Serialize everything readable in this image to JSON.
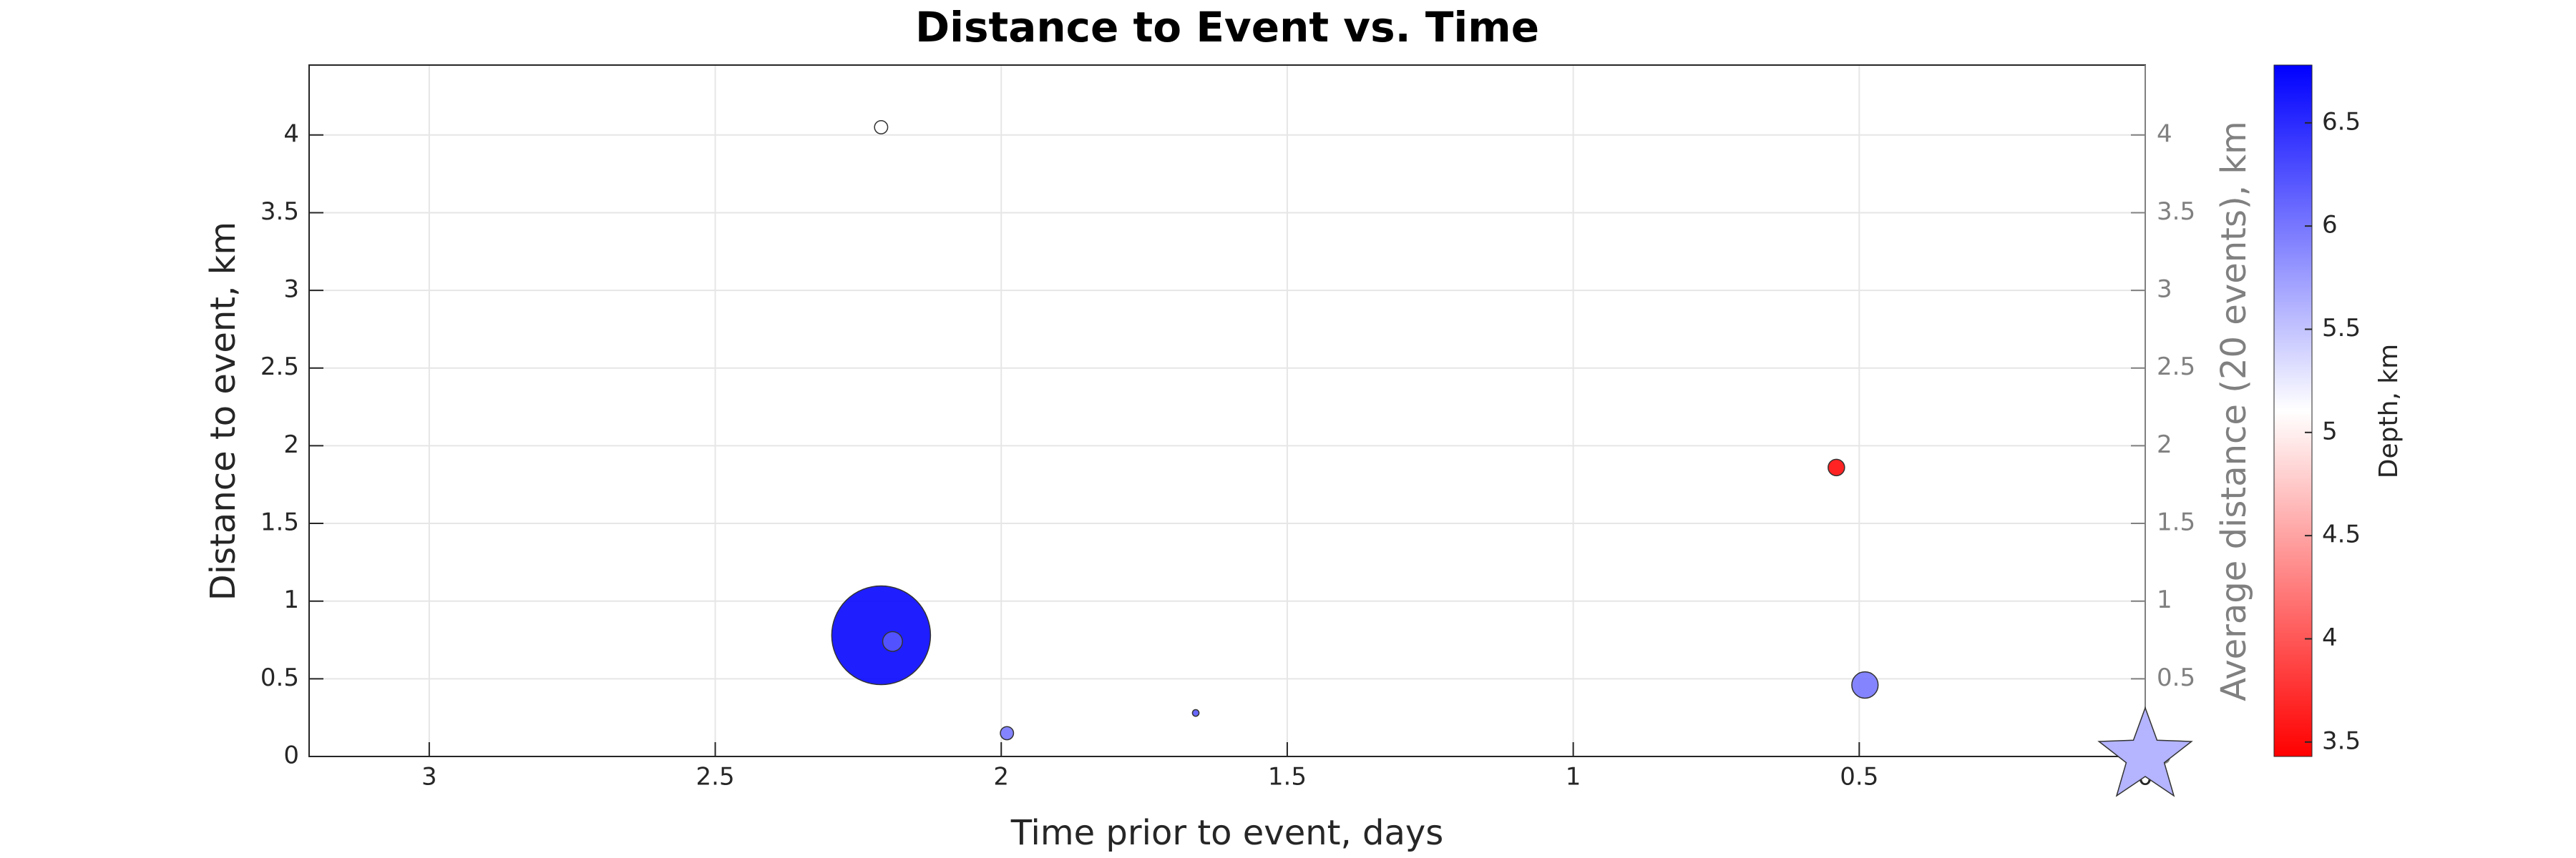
{
  "chart_data": {
    "type": "bubble",
    "title": "Distance to Event vs. Time",
    "xlabel": "Time prior to event, days",
    "ylabel": "Distance to event, km",
    "y2label": "Average distance (20 events), km",
    "colorbar_label": "Depth, km",
    "xlim": [
      3.21,
      0
    ],
    "xticks": [
      3,
      2.5,
      2,
      1.5,
      1,
      0.5,
      0
    ],
    "ylim": [
      0,
      4.45
    ],
    "yticks": [
      0,
      0.5,
      1,
      1.5,
      2,
      2.5,
      3,
      3.5,
      4
    ],
    "y2lim": [
      0,
      4.45
    ],
    "y2ticks": [
      0,
      0.5,
      1,
      1.5,
      2,
      2.5,
      3,
      3.5,
      4
    ],
    "clim": [
      3.43,
      6.78
    ],
    "cticks": [
      3.5,
      4,
      4.5,
      5,
      5.5,
      6,
      6.5
    ],
    "colormap": [
      "#ff0000",
      "#ffffff",
      "#0000ff"
    ],
    "grid": true,
    "series": [
      {
        "x": [
          2.21,
          2.21,
          2.19,
          1.99,
          1.66,
          0.54,
          0.49
        ],
        "y": [
          4.05,
          0.78,
          0.74,
          0.15,
          0.28,
          1.86,
          0.46
        ],
        "sizes": [
          16,
          900,
          36,
          16,
          4,
          25,
          64
        ],
        "depth": [
          5.1,
          6.75,
          6.2,
          6.0,
          6.2,
          3.5,
          6.0
        ]
      }
    ],
    "main_event": {
      "x": 0,
      "y": 0,
      "depth": 5.6
    }
  }
}
